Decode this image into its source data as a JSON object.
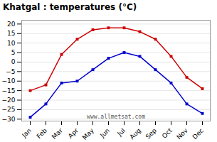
{
  "chart_data": {
    "type": "line",
    "title": "Khatgal : temperatures (°C)",
    "categories": [
      "Jan",
      "Feb",
      "Mar",
      "Apr",
      "May",
      "Jun",
      "Jul",
      "Aug",
      "Sep",
      "Oct",
      "Nov",
      "Dec"
    ],
    "series": [
      {
        "color": "#cc0000",
        "values": [
          -15,
          -12,
          4,
          12,
          17,
          18,
          18,
          16,
          12,
          3,
          -8,
          -14
        ]
      },
      {
        "color": "#0000cc",
        "values": [
          -29,
          -22,
          -11,
          -10,
          -4,
          2,
          5,
          3,
          -4,
          -11,
          -22,
          -27
        ]
      }
    ],
    "marker": "square",
    "ylim": [
      -31,
      22
    ],
    "yticks": [
      -30,
      -25,
      -20,
      -15,
      -10,
      -5,
      0,
      5,
      10,
      15,
      20
    ],
    "grid": true,
    "annotations": [
      "www.allmetsat.com"
    ]
  }
}
